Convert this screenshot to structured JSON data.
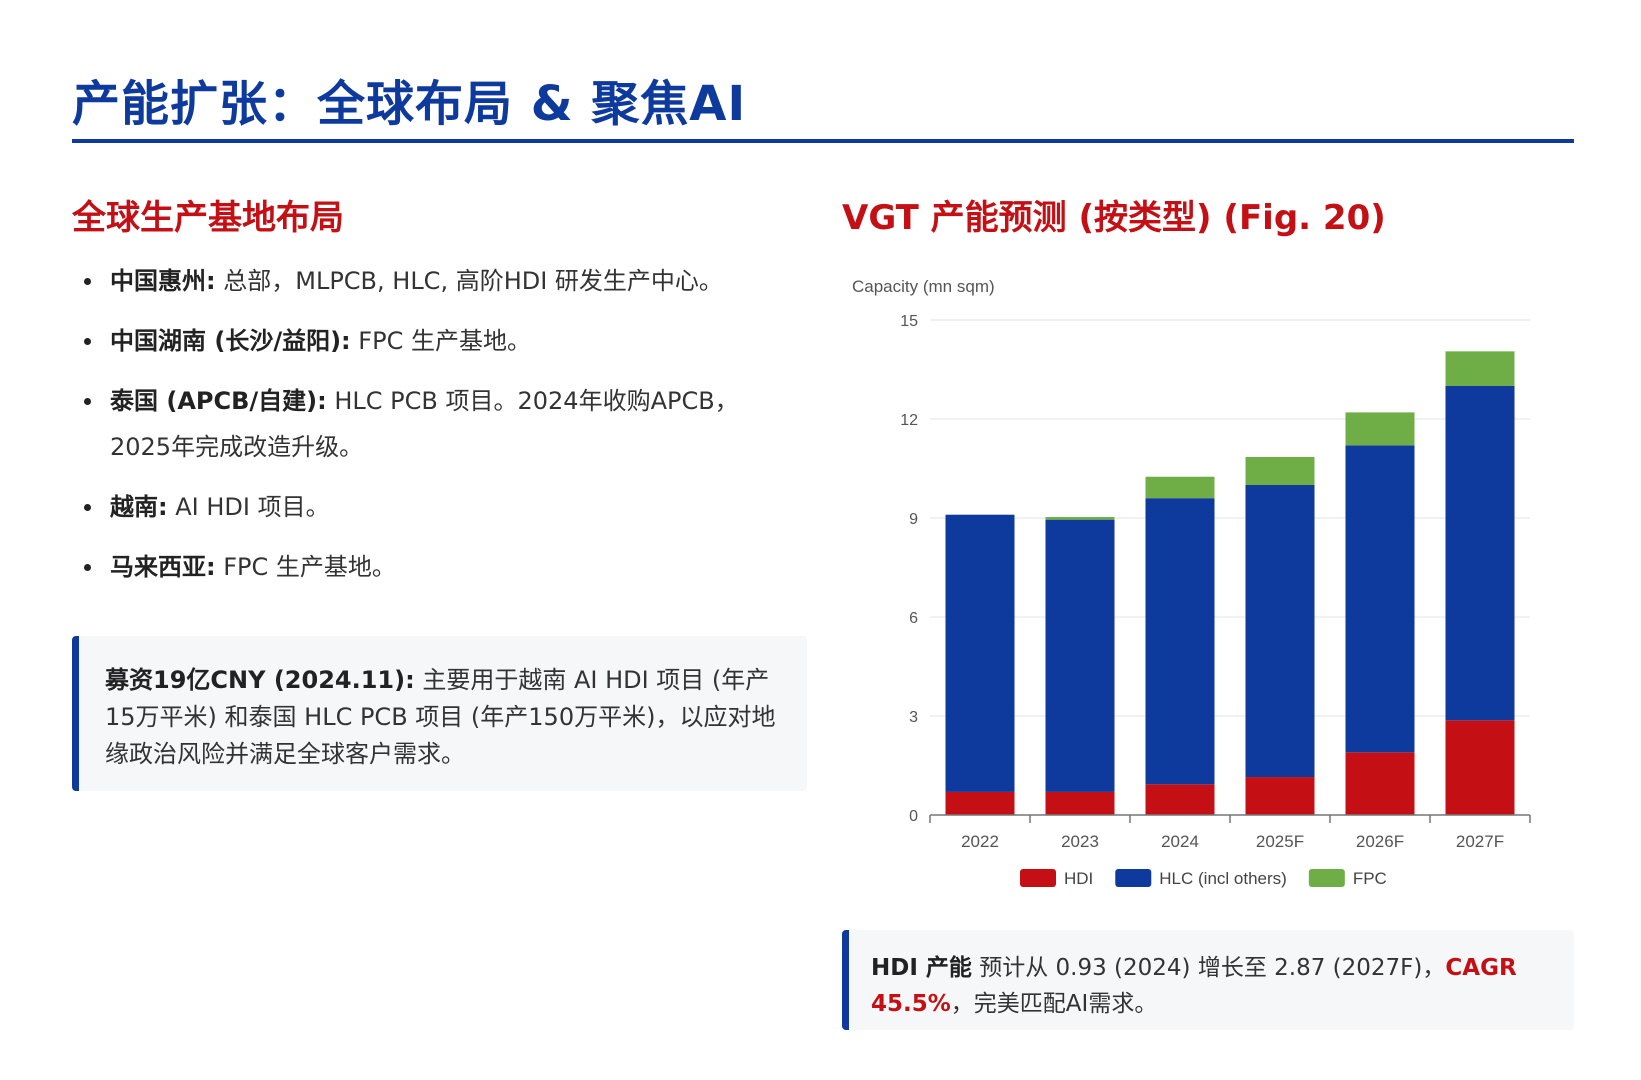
{
  "header": {
    "title": "产能扩张：全球布局 & 聚焦AI"
  },
  "left": {
    "title": "全球生产基地布局",
    "bullets": [
      {
        "label": "中国惠州:",
        "text": " 总部，MLPCB, HLC, 高阶HDI 研发生产中心。"
      },
      {
        "label": "中国湖南 (长沙/益阳):",
        "text": " FPC 生产基地。"
      },
      {
        "label": "泰国 (APCB/自建):",
        "text": " HLC PCB 项目。2024年收购APCB，2025年完成改造升级。"
      },
      {
        "label": "越南:",
        "text": " AI HDI 项目。"
      },
      {
        "label": "马来西亚:",
        "text": " FPC 生产基地。"
      }
    ],
    "note": {
      "label": "募资19亿CNY (2024.11):",
      "text": " 主要用于越南 AI HDI 项目 (年产15万平米) 和泰国 HLC PCB 项目 (年产150万平米)，以应对地缘政治风险并满足全球客户需求。"
    }
  },
  "right": {
    "title": "VGT 产能预测 (按类型) (Fig. 20)",
    "summary": {
      "label": "HDI 产能",
      "text": " 预计从 0.93 (2024) 增长至 2.87 (2027F)，",
      "highlight": "CAGR 45.5%",
      "tail": "，完美匹配AI需求。"
    }
  },
  "chart_data": {
    "type": "bar",
    "stacked": true,
    "ylabel": "Capacity (mn sqm)",
    "ylim": [
      0,
      15
    ],
    "yticks": [
      0,
      3,
      6,
      9,
      12,
      15
    ],
    "categories": [
      "2022",
      "2023",
      "2024",
      "2025F",
      "2026F",
      "2027F"
    ],
    "series": [
      {
        "name": "HDI",
        "color": "#c40f14",
        "values": [
          0.7,
          0.7,
          0.93,
          1.15,
          1.9,
          2.87
        ]
      },
      {
        "name": "HLC (incl others)",
        "color": "#0d3a9c",
        "values": [
          8.4,
          8.25,
          8.67,
          8.85,
          9.3,
          10.13
        ]
      },
      {
        "name": "FPC",
        "color": "#6fad47",
        "values": [
          0.0,
          0.08,
          0.65,
          0.85,
          1.0,
          1.05
        ]
      }
    ],
    "legend": "bottom",
    "grid": true
  }
}
